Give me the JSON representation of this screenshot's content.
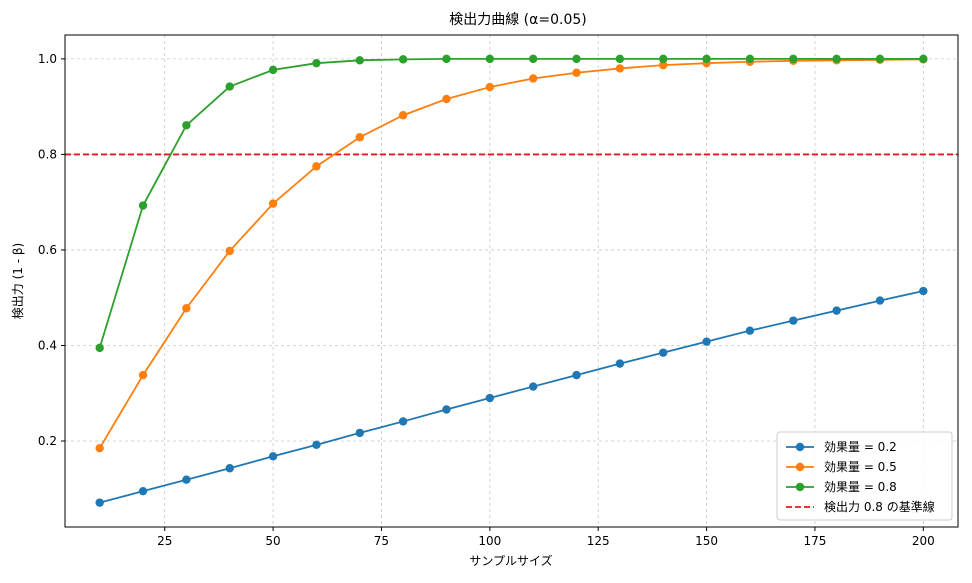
{
  "chart_data": {
    "type": "line",
    "title": "検出力曲線 (α=0.05)",
    "xlabel": "サンプルサイズ",
    "ylabel": "検出力 (1 - β)",
    "xlim": [
      2,
      208
    ],
    "ylim": [
      0.02,
      1.05
    ],
    "xticks": [
      25,
      50,
      75,
      100,
      125,
      150,
      175,
      200
    ],
    "yticks": [
      0.2,
      0.4,
      0.6,
      0.8,
      1.0
    ],
    "grid": true,
    "legend_position": "lower-right",
    "x": [
      10,
      20,
      30,
      40,
      50,
      60,
      70,
      80,
      90,
      100,
      110,
      120,
      130,
      140,
      150,
      160,
      170,
      180,
      190,
      200
    ],
    "series": [
      {
        "name": "効果量 = 0.2",
        "color": "#1f77b4",
        "values": [
          0.071,
          0.095,
          0.119,
          0.143,
          0.168,
          0.192,
          0.217,
          0.241,
          0.266,
          0.29,
          0.314,
          0.338,
          0.362,
          0.385,
          0.408,
          0.431,
          0.452,
          0.473,
          0.494,
          0.514
        ]
      },
      {
        "name": "効果量 = 0.5",
        "color": "#ff7f0e",
        "values": [
          0.185,
          0.338,
          0.478,
          0.598,
          0.697,
          0.775,
          0.836,
          0.882,
          0.916,
          0.941,
          0.959,
          0.971,
          0.98,
          0.987,
          0.991,
          0.994,
          0.996,
          0.997,
          0.998,
          0.999
        ]
      },
      {
        "name": "効果量 = 0.8",
        "color": "#2ca02c",
        "values": [
          0.395,
          0.693,
          0.861,
          0.942,
          0.977,
          0.991,
          0.997,
          0.999,
          1.0,
          1.0,
          1.0,
          1.0,
          1.0,
          1.0,
          1.0,
          1.0,
          1.0,
          1.0,
          1.0,
          1.0
        ]
      }
    ],
    "reference_line": {
      "name": "検出力 0.8 の基準線",
      "y": 0.8,
      "color": "#e31a1c"
    }
  }
}
